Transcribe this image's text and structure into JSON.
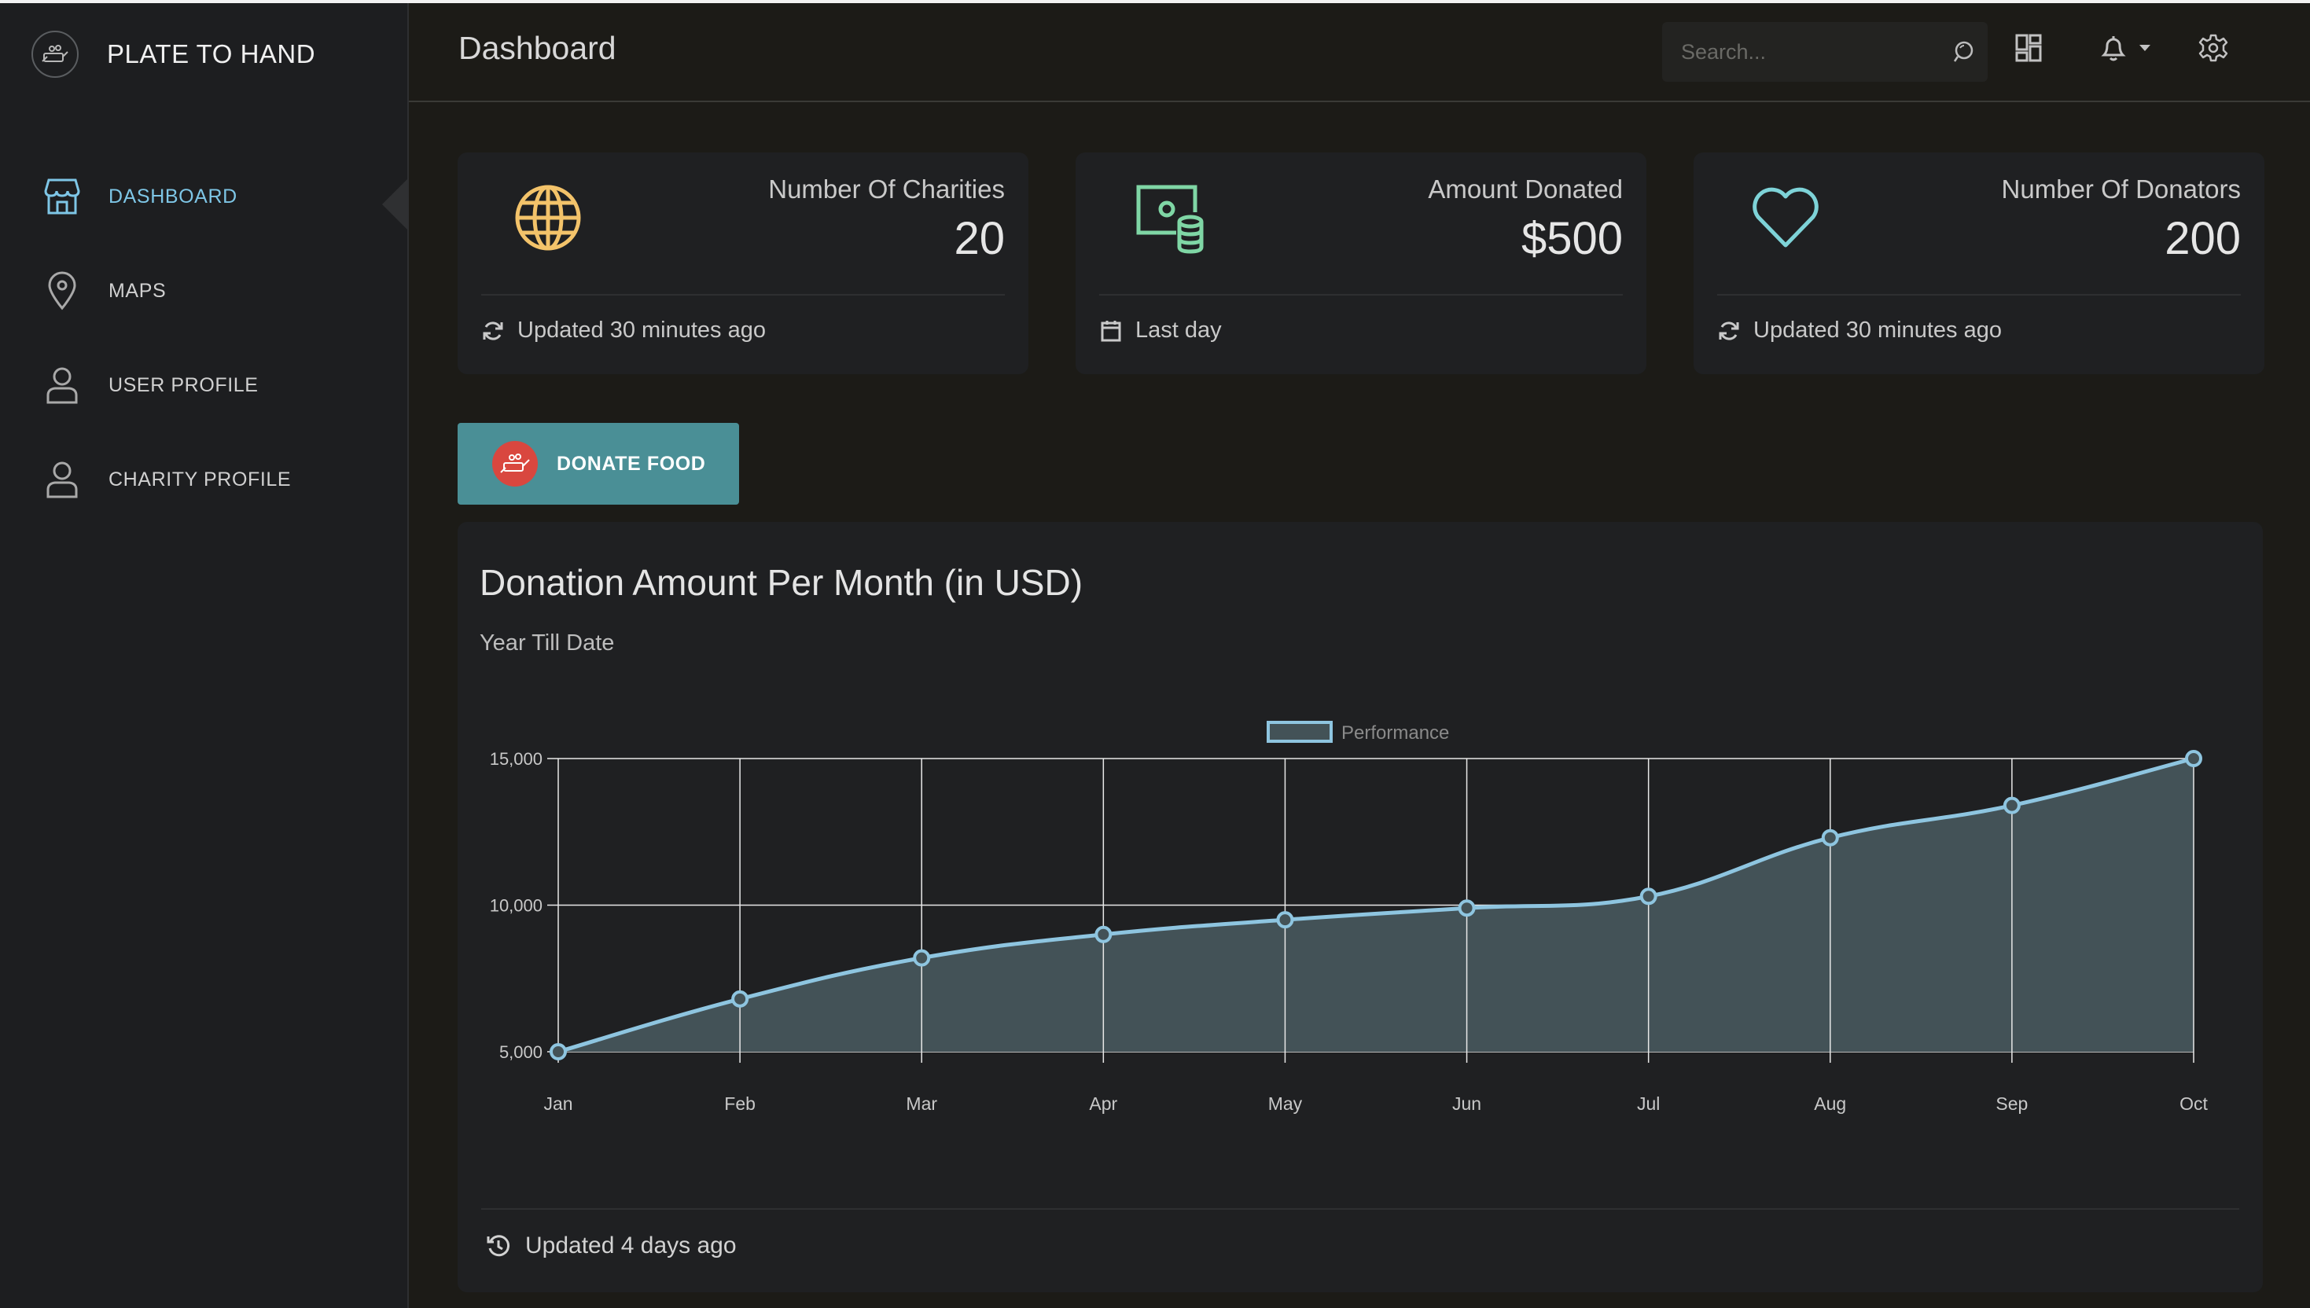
{
  "app": {
    "name": "PLATE TO HAND"
  },
  "sidebar": {
    "items": [
      {
        "label": "DASHBOARD",
        "icon": "store-icon",
        "active": true
      },
      {
        "label": "MAPS",
        "icon": "map-pin-icon",
        "active": false
      },
      {
        "label": "USER PROFILE",
        "icon": "user-icon",
        "active": false
      },
      {
        "label": "CHARITY PROFILE",
        "icon": "user-icon",
        "active": false
      }
    ]
  },
  "header": {
    "title": "Dashboard",
    "search_placeholder": "Search..."
  },
  "cards": [
    {
      "label": "Number Of Charities",
      "value": "20",
      "footer": "Updated 30 minutes ago",
      "icon": "globe-icon",
      "footer_icon": "refresh-icon",
      "color": "#f3c36a"
    },
    {
      "label": "Amount Donated",
      "value": "$500",
      "footer": "Last day",
      "icon": "money-coins-icon",
      "footer_icon": "calendar-icon",
      "color": "#7fd6a5"
    },
    {
      "label": "Number Of Donators",
      "value": "200",
      "footer": "Updated 30 minutes ago",
      "icon": "heart-icon",
      "footer_icon": "refresh-icon",
      "color": "#7ed3d8"
    }
  ],
  "donate_button": {
    "label": "DONATE FOOD"
  },
  "chart_panel": {
    "title": "Donation Amount Per Month (in USD)",
    "subtitle": "Year Till Date",
    "footer": "Updated 4 days ago"
  },
  "chart_data": {
    "type": "area",
    "categories": [
      "Jan",
      "Feb",
      "Mar",
      "Apr",
      "May",
      "Jun",
      "Jul",
      "Aug",
      "Sep",
      "Oct"
    ],
    "series": [
      {
        "name": "Performance",
        "values": [
          5000,
          6800,
          8200,
          9000,
          9500,
          9900,
          10300,
          12300,
          13400,
          15000
        ]
      }
    ],
    "yticks": [
      5000,
      10000,
      15000
    ],
    "ytick_labels": [
      "5,000",
      "10,000",
      "15,000"
    ],
    "ylim": [
      5000,
      15000
    ],
    "legend": "top-center",
    "grid": true,
    "colors": {
      "line": "#8ec5e0",
      "fill": "#435257"
    }
  }
}
